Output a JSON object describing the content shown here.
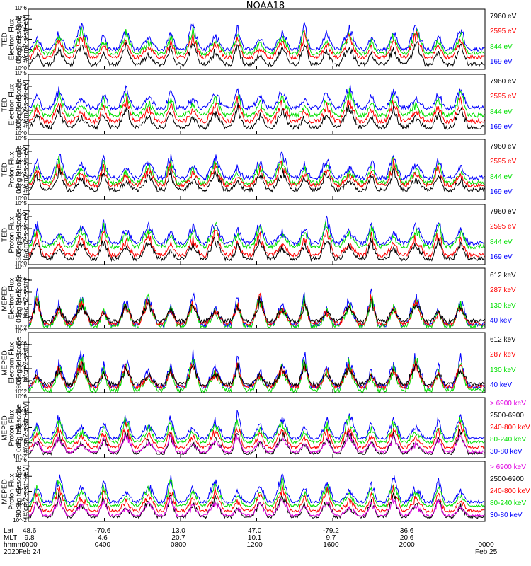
{
  "title": "NOAA18",
  "panels": [
    {
      "id": "ted-e-0",
      "ylabel": [
        "TED",
        "Electron Flux",
        "0deg telescope",
        "[#/cm2-s-str-eV]"
      ],
      "yticks": [
        "10^0",
        "10^1",
        "10^2",
        "10^3",
        "10^4",
        "10^5",
        "10^6"
      ],
      "legend": [
        {
          "label": "7960 eV",
          "color": "#000000"
        },
        {
          "label": "2595 eV",
          "color": "#ff0000"
        },
        {
          "label": "844 eV",
          "color": "#00e000"
        },
        {
          "label": "169 eV",
          "color": "#0000ff"
        }
      ]
    },
    {
      "id": "ted-e-30",
      "ylabel": [
        "TED",
        "Electron Flux",
        "30deg telescope",
        "[#/cm2-s-str-eV]"
      ],
      "yticks": [
        "10^0",
        "10^1",
        "10^2",
        "10^3",
        "10^4",
        "10^5"
      ],
      "legend": [
        {
          "label": "7960 eV",
          "color": "#000000"
        },
        {
          "label": "2595 eV",
          "color": "#ff0000"
        },
        {
          "label": "844 eV",
          "color": "#00e000"
        },
        {
          "label": "169 eV",
          "color": "#0000ff"
        }
      ]
    },
    {
      "id": "ted-p-0",
      "ylabel": [
        "TED",
        "Proton Flux",
        "0deg telescope",
        "[#/cm2-s-str-eV]"
      ],
      "yticks": [
        "10^0",
        "10^1",
        "10^2",
        "10^3",
        "10^4",
        "10^5"
      ],
      "legend": [
        {
          "label": "7960 eV",
          "color": "#000000"
        },
        {
          "label": "2595 eV",
          "color": "#ff0000"
        },
        {
          "label": "844 eV",
          "color": "#00e000"
        },
        {
          "label": "169 eV",
          "color": "#0000ff"
        }
      ]
    },
    {
      "id": "ted-p-30",
      "ylabel": [
        "TED",
        "Proton Flux",
        "30deg telescope",
        "[#/cm2-s-str-eV]"
      ],
      "yticks": [
        "10^0",
        "10^1",
        "10^2",
        "10^3",
        "10^4",
        "10^5"
      ],
      "legend": [
        {
          "label": "7960 eV",
          "color": "#000000"
        },
        {
          "label": "2595 eV",
          "color": "#ff0000"
        },
        {
          "label": "844 eV",
          "color": "#00e000"
        },
        {
          "label": "169 eV",
          "color": "#0000ff"
        }
      ]
    },
    {
      "id": "meped-e-0",
      "ylabel": [
        "MEPED",
        "Electron Flux",
        "0deg telescope",
        "[#/cm2-s-str]"
      ],
      "yticks": [
        "10^2",
        "10^3",
        "10^4",
        "10^5",
        "10^6",
        "10^7"
      ],
      "legend": [
        {
          "label": "612 keV",
          "color": "#000000"
        },
        {
          "label": "287 keV",
          "color": "#ff0000"
        },
        {
          "label": "130 keV",
          "color": "#00e000"
        },
        {
          "label": "40 keV",
          "color": "#0000ff"
        }
      ]
    },
    {
      "id": "meped-e-90",
      "ylabel": [
        "MEPED",
        "Electron Flux",
        "90deg telescope",
        "[#/cm2-s-str]"
      ],
      "yticks": [
        "10^2",
        "10^3",
        "10^4",
        "10^5",
        "10^6",
        "10^7"
      ],
      "legend": [
        {
          "label": "612 keV",
          "color": "#000000"
        },
        {
          "label": "287 keV",
          "color": "#ff0000"
        },
        {
          "label": "130 keV",
          "color": "#00e000"
        },
        {
          "label": "40 keV",
          "color": "#0000ff"
        }
      ]
    },
    {
      "id": "meped-p-0",
      "ylabel": [
        "MEPED",
        "Proton Flux",
        "0deg telescope",
        "[#/cm2-s-str-keV]"
      ],
      "yticks": [
        "10^-2",
        "10^0",
        "10^2",
        "10^4",
        "10^6"
      ],
      "legend": [
        {
          "label": "> 6900 keV",
          "color": "#e000e0"
        },
        {
          "label": "2500-6900",
          "color": "#000000"
        },
        {
          "label": "240-800 keV",
          "color": "#ff0000"
        },
        {
          "label": "80-240 keV",
          "color": "#00e000"
        },
        {
          "label": "30-80 keV",
          "color": "#0000ff"
        }
      ]
    },
    {
      "id": "meped-p-90",
      "ylabel": [
        "MEPED",
        "Proton Flux",
        "90deg telescope",
        "[#/cm2-s-str-keV]"
      ],
      "yticks": [
        "10^-2",
        "10^0",
        "10^2",
        "10^4",
        "10^6"
      ],
      "legend": [
        {
          "label": "> 6900 keV",
          "color": "#e000e0"
        },
        {
          "label": "2500-6900",
          "color": "#000000"
        },
        {
          "label": "240-800 keV",
          "color": "#ff0000"
        },
        {
          "label": "80-240 keV",
          "color": "#00e000"
        },
        {
          "label": "30-80 keV",
          "color": "#0000ff"
        }
      ]
    }
  ],
  "footer": {
    "row_labels": [
      "Lat",
      "MLT",
      "hhmm",
      "2020"
    ],
    "columns": [
      {
        "lat": "48.6",
        "mlt": "9.8",
        "hhmm": "0000",
        "date": "Feb 24"
      },
      {
        "lat": "-70.6",
        "mlt": "4.6",
        "hhmm": "0400",
        "date": ""
      },
      {
        "lat": "13.0",
        "mlt": "20.7",
        "hhmm": "0800",
        "date": ""
      },
      {
        "lat": "47.0",
        "mlt": "10.1",
        "hhmm": "1200",
        "date": ""
      },
      {
        "lat": "-79.2",
        "mlt": "9.7",
        "hhmm": "1600",
        "date": ""
      },
      {
        "lat": "36.6",
        "mlt": "20.6",
        "hhmm": "2000",
        "date": ""
      },
      {
        "lat": "",
        "mlt": "",
        "hhmm": "0000",
        "date": "Feb 25"
      }
    ]
  },
  "chart_data": {
    "type": "line",
    "title": "NOAA18",
    "x_axis": {
      "label": "hhmm",
      "range": [
        "0000 Feb 24",
        "0000 Feb 25"
      ],
      "ticks": [
        "0000",
        "0400",
        "0800",
        "1200",
        "1600",
        "2000",
        "0000"
      ]
    },
    "y_scale": "log",
    "panels": [
      {
        "name": "TED Electron Flux 0deg",
        "ylim": [
          1,
          1000000
        ],
        "series": [
          "7960 eV",
          "2595 eV",
          "844 eV",
          "169 eV"
        ],
        "baseline_log10": [
          0.5,
          1.2,
          1.6,
          2.0
        ]
      },
      {
        "name": "TED Electron Flux 30deg",
        "ylim": [
          1,
          100000
        ],
        "series": [
          "7960 eV",
          "2595 eV",
          "844 eV",
          "169 eV"
        ],
        "baseline_log10": [
          0.6,
          1.1,
          1.6,
          2.2
        ]
      },
      {
        "name": "TED Proton Flux 0deg",
        "ylim": [
          1,
          100000
        ],
        "series": [
          "7960 eV",
          "2595 eV",
          "844 eV",
          "169 eV"
        ],
        "baseline_log10": [
          0.8,
          1.2,
          1.4,
          1.8
        ]
      },
      {
        "name": "TED Proton Flux 30deg",
        "ylim": [
          1,
          100000
        ],
        "series": [
          "7960 eV",
          "2595 eV",
          "844 eV",
          "169 eV"
        ],
        "baseline_log10": [
          0.5,
          0.8,
          1.5,
          1.8
        ]
      },
      {
        "name": "MEPED Electron Flux 0deg",
        "ylim": [
          100,
          10000000
        ],
        "series": [
          "612 keV",
          "287 keV",
          "130 keV",
          "40 keV"
        ],
        "baseline_log10": [
          2.6,
          2.4,
          2.2,
          2.3
        ]
      },
      {
        "name": "MEPED Electron Flux 90deg",
        "ylim": [
          100,
          10000000
        ],
        "series": [
          "612 keV",
          "287 keV",
          "130 keV",
          "40 keV"
        ],
        "baseline_log10": [
          2.7,
          2.5,
          2.2,
          2.5
        ]
      },
      {
        "name": "MEPED Proton Flux 0deg",
        "ylim": [
          0.01,
          1000000
        ],
        "series": [
          "> 6900 keV",
          "2500-6900",
          "240-800 keV",
          "80-240 keV",
          "30-80 keV"
        ],
        "baseline_log10": [
          -1.2,
          -1.4,
          -0.6,
          0.1,
          0.6
        ]
      },
      {
        "name": "MEPED Proton Flux 90deg",
        "ylim": [
          0.01,
          1000000
        ],
        "series": [
          "> 6900 keV",
          "2500-6900",
          "240-800 keV",
          "80-240 keV",
          "30-80 keV"
        ],
        "baseline_log10": [
          -1.2,
          -1.4,
          -0.6,
          0.1,
          0.6
        ]
      }
    ]
  }
}
